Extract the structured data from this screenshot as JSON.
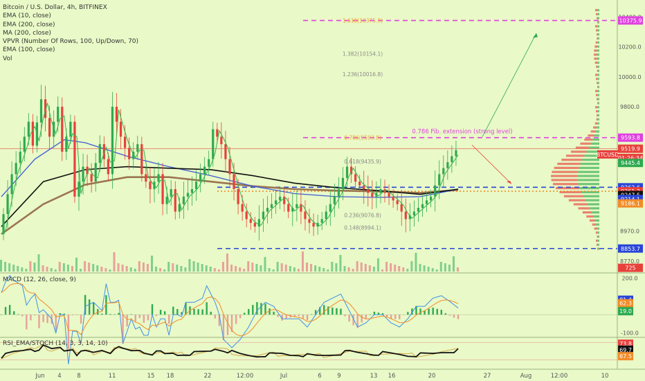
{
  "chart_data": {
    "type": "candlestick",
    "title": "Bitcoin / U.S. Dollar, 4h, BITFINEX",
    "symbol": "BTCUSD",
    "indicators": [
      "EMA (10, close)",
      "EMA (200, close)",
      "MA (200, close)",
      "VPVR (Number Of Rows, 100, Up/Down, 70)",
      "EMA (100, close)",
      "Vol"
    ],
    "price_axis_ticks": [
      "10400.0",
      "10200.0",
      "10000.0",
      "9800.0",
      "8970.0",
      "8770.0"
    ],
    "price_range": [
      8700,
      10420
    ],
    "x_ticks": [
      "Jun",
      "4",
      "8",
      "11",
      "15",
      "18",
      "22",
      "12:00",
      "Jul",
      "6",
      "9",
      "13",
      "16",
      "20",
      "27",
      "Aug",
      "12:00",
      "10"
    ],
    "price_tags": [
      {
        "label": "10375.9",
        "value": 10375.9,
        "color": "#e040e0"
      },
      {
        "label": "9593.8",
        "value": 9593.8,
        "color": "#e040e0"
      },
      {
        "label": "9519.9",
        "value": 9519.9,
        "color": "#e8403b"
      },
      {
        "label": "BTCUSD",
        "value": 9482,
        "color": "#e8403b"
      },
      {
        "label": "01:26:34",
        "value": 9458,
        "color": "#e8403b"
      },
      {
        "label": "9445.4",
        "value": 9425,
        "color": "#2eaa4f"
      },
      {
        "label": "9262.6",
        "value": 9262.6,
        "color": "#2946d8"
      },
      {
        "label": "9261.2",
        "value": 9236,
        "color": "#e8403b"
      },
      {
        "label": "9247.5",
        "value": 9211,
        "color": "#111111"
      },
      {
        "label": "9214.1",
        "value": 9184,
        "color": "#2946d8"
      },
      {
        "label": "9186.1",
        "value": 9155,
        "color": "#f28c28"
      },
      {
        "label": "8853.7",
        "value": 8853.7,
        "color": "#2946d8"
      },
      {
        "label": "725",
        "value": 8725,
        "color": "#e8403b"
      }
    ],
    "fib_levels": [
      {
        "label": "1.618(10375.9)",
        "value": 10375.9,
        "color": "#f2a03d"
      },
      {
        "label": "1.382(10154.1)",
        "value": 10154.1,
        "color": "#8a8a8a"
      },
      {
        "label": "1.236(10016.8)",
        "value": 10016.8,
        "color": "#8a8a8a"
      },
      {
        "label": "0.786(9593.8)",
        "value": 9593.8,
        "color": "#f2a03d"
      },
      {
        "label": "0.618(9435.9)",
        "value": 9435.9,
        "color": "#8a8a8a"
      },
      {
        "label": "0.236(9076.8)",
        "value": 9076.8,
        "color": "#8a8a8a"
      },
      {
        "label": "0.148(8994.1)",
        "value": 8994.1,
        "color": "#8a8a8a"
      }
    ],
    "annotations": [
      {
        "text": "0.786 Fib. extension (strong level)",
        "color": "#e040e0"
      }
    ],
    "horizontal_levels": [
      {
        "value": 10375.9,
        "color": "#e040e0",
        "style": "dashed"
      },
      {
        "value": 9593.8,
        "color": "#e040e0",
        "style": "dashed"
      },
      {
        "value": 9262.6,
        "color": "#2946d8",
        "style": "dashed"
      },
      {
        "value": 8853.7,
        "color": "#2946d8",
        "style": "dashed"
      },
      {
        "value": 9519.9,
        "color": "#e8403b",
        "style": "solid"
      },
      {
        "value": 9236,
        "color": "#f28c28",
        "style": "dotted"
      }
    ],
    "price_path": [
      [
        0,
        8950
      ],
      [
        3,
        9350
      ],
      [
        5,
        9500
      ],
      [
        7,
        9700
      ],
      [
        8,
        9540
      ],
      [
        10,
        9850
      ],
      [
        12,
        9600
      ],
      [
        14,
        9800
      ],
      [
        15,
        9500
      ],
      [
        17,
        9700
      ],
      [
        18,
        9200
      ],
      [
        20,
        9400
      ],
      [
        22,
        9300
      ],
      [
        24,
        9550
      ],
      [
        26,
        9350
      ],
      [
        27,
        9800
      ],
      [
        29,
        9600
      ],
      [
        31,
        9450
      ],
      [
        33,
        9550
      ],
      [
        34,
        9350
      ],
      [
        36,
        9250
      ],
      [
        38,
        9350
      ],
      [
        39,
        9150
      ],
      [
        41,
        9250
      ],
      [
        42,
        9100
      ],
      [
        44,
        9200
      ],
      [
        46,
        9250
      ],
      [
        48,
        9350
      ],
      [
        50,
        9450
      ],
      [
        51,
        9650
      ],
      [
        53,
        9550
      ],
      [
        55,
        9350
      ],
      [
        57,
        9150
      ],
      [
        59,
        9050
      ],
      [
        61,
        9000
      ],
      [
        63,
        9100
      ],
      [
        65,
        9150
      ],
      [
        67,
        9200
      ],
      [
        69,
        9100
      ],
      [
        71,
        9150
      ],
      [
        73,
        9050
      ],
      [
        75,
        9000
      ],
      [
        77,
        9050
      ],
      [
        79,
        9150
      ],
      [
        81,
        9250
      ],
      [
        83,
        9400
      ],
      [
        85,
        9300
      ],
      [
        87,
        9250
      ],
      [
        89,
        9200
      ],
      [
        91,
        9250
      ],
      [
        93,
        9200
      ],
      [
        95,
        9150
      ],
      [
        97,
        9050
      ],
      [
        99,
        9100
      ],
      [
        101,
        9150
      ],
      [
        103,
        9200
      ],
      [
        105,
        9350
      ],
      [
        107,
        9430
      ],
      [
        109,
        9510
      ]
    ],
    "ema_black": [
      [
        0,
        9000
      ],
      [
        10,
        9300
      ],
      [
        20,
        9380
      ],
      [
        30,
        9400
      ],
      [
        40,
        9390
      ],
      [
        50,
        9380
      ],
      [
        60,
        9340
      ],
      [
        70,
        9290
      ],
      [
        80,
        9260
      ],
      [
        90,
        9240
      ],
      [
        100,
        9215
      ],
      [
        109,
        9250
      ]
    ],
    "ema_blue": [
      [
        0,
        9200
      ],
      [
        8,
        9450
      ],
      [
        15,
        9580
      ],
      [
        20,
        9560
      ],
      [
        30,
        9470
      ],
      [
        40,
        9400
      ],
      [
        50,
        9340
      ],
      [
        60,
        9270
      ],
      [
        70,
        9220
      ],
      [
        80,
        9200
      ],
      [
        90,
        9195
      ],
      [
        100,
        9200
      ],
      [
        109,
        9250
      ]
    ],
    "ma_brown": [
      [
        0,
        8950
      ],
      [
        10,
        9150
      ],
      [
        20,
        9280
      ],
      [
        30,
        9330
      ],
      [
        40,
        9330
      ],
      [
        50,
        9300
      ],
      [
        60,
        9270
      ],
      [
        70,
        9250
      ],
      [
        80,
        9240
      ],
      [
        90,
        9235
      ],
      [
        100,
        9225
      ],
      [
        109,
        9245
      ]
    ],
    "macd": {
      "title": "MACD (12, 26, close, 9)",
      "ticks": [
        "200.0",
        "-100.0"
      ],
      "range": [
        -120,
        220
      ],
      "tags": [
        {
          "label": "81.4",
          "value": 81.4,
          "color": "#2946d8"
        },
        {
          "label": "62.3",
          "value": 62.3,
          "color": "#f28c28"
        },
        {
          "label": "19.0",
          "value": 19.0,
          "color": "#2eaa4f"
        }
      ]
    },
    "rsi": {
      "title": "RSI_EMA/STOCH (14, 3, 3, 14, 10)",
      "tags": [
        {
          "label": "73.8",
          "value": 73.8,
          "color": "#e8403b"
        },
        {
          "label": "69.7",
          "value": 69.7,
          "color": "#111111"
        },
        {
          "label": "67.5",
          "value": 67.5,
          "color": "#f28c28"
        }
      ]
    }
  }
}
